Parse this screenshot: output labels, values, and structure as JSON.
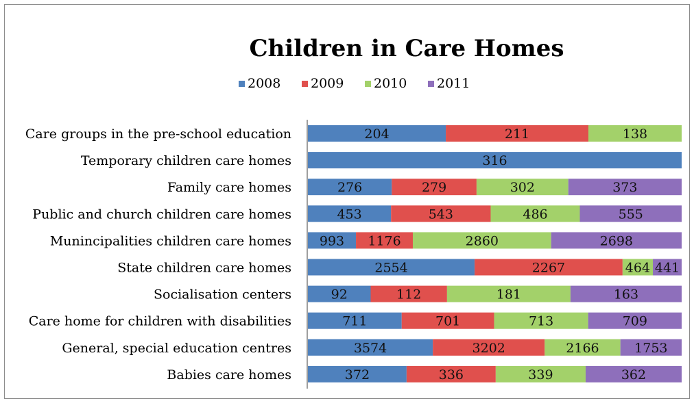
{
  "chart_data": {
    "type": "bar",
    "orientation": "horizontal",
    "stacked": "percent",
    "title": "Children in Care Homes",
    "legend_position": "top",
    "grid": false,
    "categories": [
      "Care groups in the pre-school education",
      "Temporary children care homes",
      "Family care homes",
      "Public and church children care homes",
      "Munincipalities children care homes",
      "State children care homes",
      "Socialisation centers",
      "Care home for children with disabilities",
      "General, special education centres",
      "Babies care homes"
    ],
    "series": [
      {
        "name": "2008",
        "color": "#4f81bd",
        "values": [
          204,
          316,
          276,
          453,
          993,
          2554,
          92,
          711,
          3574,
          372
        ]
      },
      {
        "name": "2009",
        "color": "#e0504d",
        "values": [
          211,
          null,
          279,
          543,
          1176,
          2267,
          112,
          701,
          3202,
          336
        ]
      },
      {
        "name": "2010",
        "color": "#a3d16a",
        "values": [
          138,
          null,
          302,
          486,
          2860,
          464,
          181,
          713,
          2166,
          339
        ]
      },
      {
        "name": "2011",
        "color": "#8e6fbb",
        "values": [
          null,
          null,
          373,
          555,
          2698,
          441,
          163,
          709,
          1753,
          362
        ]
      }
    ]
  }
}
